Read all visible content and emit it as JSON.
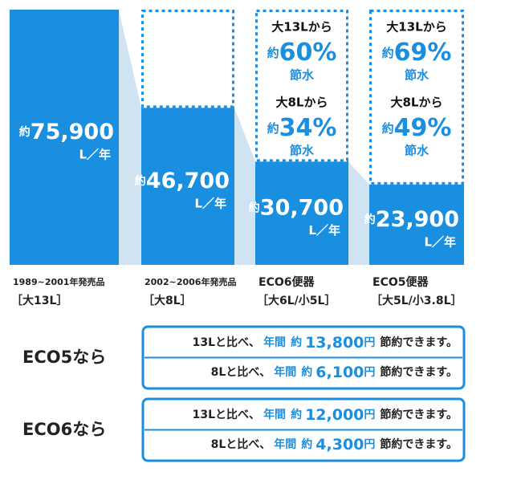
{
  "chart_data": {
    "type": "bar",
    "color": "#1a8fe0",
    "connector_color": "#cfe3f3",
    "categories": [
      "1989~2001年発売品",
      "2002~2006年発売品",
      "ECO6便器",
      "ECO5便器"
    ],
    "sub_labels": [
      "［大13L］",
      "［大8L］",
      "［大6L/小5L］",
      "［大5L/小3.8L］"
    ],
    "values": [
      75900,
      46700,
      30700,
      23900
    ],
    "value_labels": [
      "75,900",
      "46,700",
      "30,700",
      "23,900"
    ],
    "approx": "約",
    "unit": "L／年",
    "savings": [
      null,
      null,
      [
        {
          "from": "大13Lから",
          "percent": "60%",
          "label": "節水"
        },
        {
          "from": "大8Lから",
          "percent": "34%",
          "label": "節水"
        }
      ],
      [
        {
          "from": "大13Lから",
          "percent": "69%",
          "label": "節水"
        },
        {
          "from": "大8Lから",
          "percent": "49%",
          "label": "節水"
        }
      ]
    ]
  },
  "comparison": {
    "per_year": "年間",
    "approx": "約",
    "currency": "円",
    "ending": "節約できます。",
    "groups": [
      {
        "label": "ECO5なら",
        "rows": [
          {
            "base": "13Lと比べ、",
            "amount": "13,800"
          },
          {
            "base": "8Lと比べ、",
            "amount": "6,100"
          }
        ]
      },
      {
        "label": "ECO6なら",
        "rows": [
          {
            "base": "13Lと比べ、",
            "amount": "12,000"
          },
          {
            "base": "8Lと比べ、",
            "amount": "4,300"
          }
        ]
      }
    ]
  }
}
